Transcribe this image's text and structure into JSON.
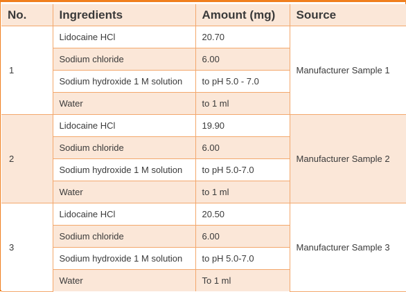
{
  "table": {
    "headers": [
      "No.",
      "Ingredients",
      "Amount (mg)",
      "Source"
    ],
    "groups": [
      {
        "no": "1",
        "source": "Manufacturer Sample 1",
        "rows": [
          {
            "ingredient": "Lidocaine HCl",
            "amount": "20.70"
          },
          {
            "ingredient": "Sodium chloride",
            "amount": "6.00"
          },
          {
            "ingredient": "Sodium hydroxide 1 M solution",
            "amount": "to pH 5.0 - 7.0"
          },
          {
            "ingredient": "Water",
            "amount": "to 1 ml"
          }
        ]
      },
      {
        "no": "2",
        "source": "Manufacturer Sample 2",
        "rows": [
          {
            "ingredient": "Lidocaine HCl",
            "amount": "19.90"
          },
          {
            "ingredient": "Sodium chloride",
            "amount": "6.00"
          },
          {
            "ingredient": "Sodium hydroxide 1 M solution",
            "amount": "to pH 5.0-7.0"
          },
          {
            "ingredient": "Water",
            "amount": "to 1 ml"
          }
        ]
      },
      {
        "no": "3",
        "source": "Manufacturer Sample 3",
        "rows": [
          {
            "ingredient": "Lidocaine HCl",
            "amount": "20.50"
          },
          {
            "ingredient": "Sodium chloride",
            "amount": "6.00"
          },
          {
            "ingredient": "Sodium hydroxide 1 M solution",
            "amount": "to pH 5.0-7.0"
          },
          {
            "ingredient": "Water",
            "amount": "To 1 ml"
          }
        ]
      }
    ]
  },
  "colors": {
    "border_accent": "#f07f1e",
    "cell_line": "#f3a76b",
    "tint": "#fbe7d8",
    "text": "#3a3a3a"
  }
}
